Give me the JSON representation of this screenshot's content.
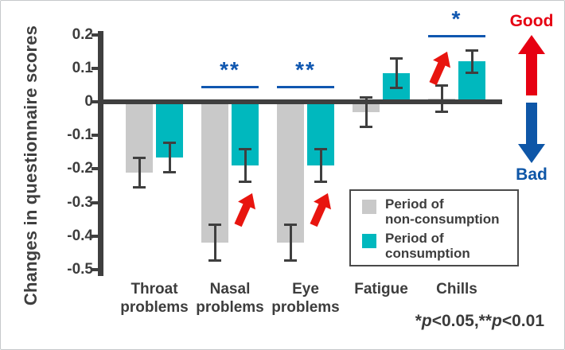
{
  "chart_data": {
    "type": "bar",
    "title": "",
    "ylabel": "Changes in questionnaire scores",
    "xlabel": "",
    "categories": [
      "Throat problems",
      "Nasal problems",
      "Eye problems",
      "Fatigue",
      "Chills"
    ],
    "series": [
      {
        "name": "Period of non-consumption",
        "color": "#c9c9c9",
        "values": [
          -0.21,
          -0.42,
          -0.42,
          -0.03,
          0.01
        ],
        "errors": [
          0.045,
          0.055,
          0.055,
          0.045,
          0.04
        ]
      },
      {
        "name": "Period of consumption",
        "color": "#00b8be",
        "values": [
          -0.165,
          -0.19,
          -0.19,
          0.085,
          0.12
        ],
        "errors": [
          0.045,
          0.05,
          0.05,
          0.045,
          0.035
        ]
      }
    ],
    "yticks": [
      0.2,
      0.1,
      0,
      -0.1,
      -0.2,
      -0.3,
      -0.4,
      -0.5
    ],
    "ylim": [
      -0.5,
      0.2
    ],
    "grid": false,
    "legend_position": "inside bottom-right",
    "significance": [
      {
        "category": "Nasal problems",
        "group": 1,
        "label": "**",
        "line_value": 0.045
      },
      {
        "category": "Eye problems",
        "group": 2,
        "label": "**",
        "line_value": 0.045
      },
      {
        "category": "Chills",
        "group": 4,
        "label": "*",
        "line_value": 0.197
      }
    ],
    "improvement_arrows": {
      "color": "#e8150f",
      "groups": [
        1,
        2,
        4
      ]
    }
  },
  "legend": {
    "items": [
      {
        "line1": "Period of",
        "line2": "non-consumption",
        "color": "#c9c9c9"
      },
      {
        "line1": "Period of",
        "line2": "consumption",
        "color": "#00b8be"
      }
    ]
  },
  "good_bad": {
    "good_label": "Good",
    "good_color": "#e60012",
    "bad_label": "Bad",
    "bad_color": "#0e56a7"
  },
  "footnote": {
    "text": "*p<0.05,**p<0.01",
    "parts": [
      {
        "t": "*"
      },
      {
        "t": "p",
        "italic": true
      },
      {
        "t": "<0.05,**"
      },
      {
        "t": "p",
        "italic": true
      },
      {
        "t": "<0.01"
      }
    ]
  },
  "colors": {
    "axis": "#3f3f3f",
    "bar_gray": "#c9c9c9",
    "bar_teal": "#00b8be",
    "significance_blue": "#1057b0",
    "arrow_red": "#e8150f"
  }
}
